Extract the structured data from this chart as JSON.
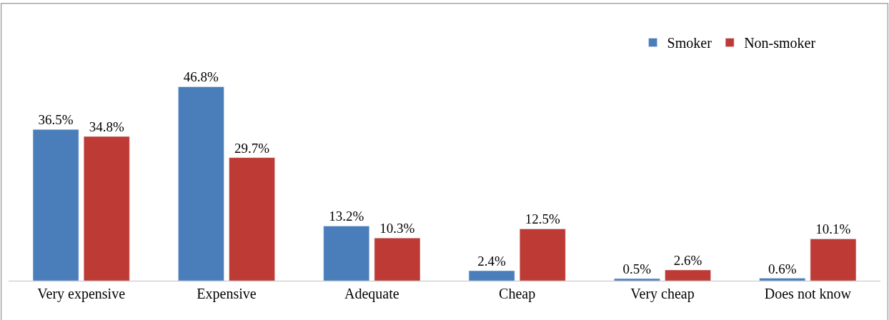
{
  "chart_data": {
    "type": "bar",
    "categories": [
      "Very expensive",
      "Expensive",
      "Adequate",
      "Cheap",
      "Very cheap",
      "Does not know"
    ],
    "series": [
      {
        "name": "Smoker",
        "color": "#4a7ebb",
        "values": [
          36.5,
          46.8,
          13.2,
          2.4,
          0.5,
          0.6
        ],
        "value_labels": [
          "36.5%",
          "46.8%",
          "13.2%",
          "2.4%",
          "0.5%",
          "0.6%"
        ]
      },
      {
        "name": "Non-smoker",
        "color": "#be3a34",
        "values": [
          34.8,
          29.7,
          10.3,
          12.5,
          2.6,
          10.1
        ],
        "value_labels": [
          "34.8%",
          "29.7%",
          "10.3%",
          "12.5%",
          "2.6%",
          "10.1%"
        ]
      }
    ],
    "legend": "top right"
  }
}
